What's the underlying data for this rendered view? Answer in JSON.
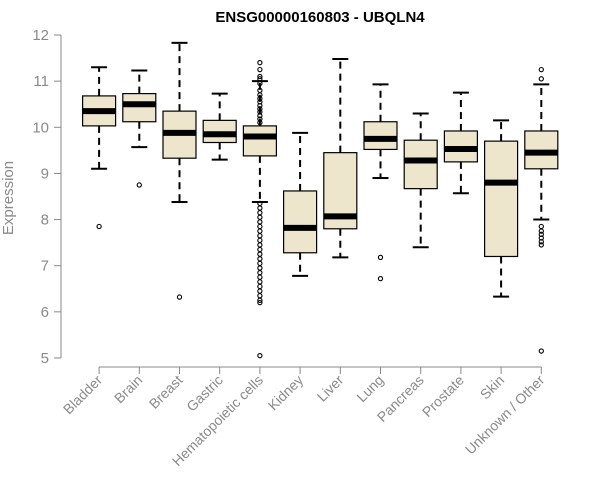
{
  "chart_data": {
    "type": "boxplot",
    "title": "ENSG00000160803 - UBQLN4",
    "xlabel": "",
    "ylabel": "Expression",
    "ylim": [
      5,
      12
    ],
    "yticks": [
      5,
      6,
      7,
      8,
      9,
      10,
      11,
      12
    ],
    "grid": false,
    "box_fill": "#ede6cc",
    "categories": [
      "Bladder",
      "Brain",
      "Breast",
      "Gastric",
      "Hematopoietic cells",
      "Kidney",
      "Liver",
      "Lung",
      "Pancreas",
      "Prostate",
      "Skin",
      "Unknown / Other"
    ],
    "boxes": [
      {
        "name": "Bladder",
        "whisker_low": 9.1,
        "q1": 10.03,
        "median": 10.35,
        "q3": 10.68,
        "whisker_high": 11.3,
        "outliers": [
          7.85
        ]
      },
      {
        "name": "Brain",
        "whisker_low": 9.57,
        "q1": 10.12,
        "median": 10.5,
        "q3": 10.73,
        "whisker_high": 11.23,
        "outliers": [
          8.75
        ]
      },
      {
        "name": "Breast",
        "whisker_low": 8.38,
        "q1": 9.33,
        "median": 9.88,
        "q3": 10.35,
        "whisker_high": 11.83,
        "outliers": [
          6.32
        ]
      },
      {
        "name": "Gastric",
        "whisker_low": 9.3,
        "q1": 9.67,
        "median": 9.85,
        "q3": 10.15,
        "whisker_high": 10.73,
        "outliers": []
      },
      {
        "name": "Hematopoietic cells",
        "whisker_low": 8.38,
        "q1": 9.38,
        "median": 9.8,
        "q3": 10.03,
        "whisker_high": 11.0,
        "outliers": [
          11.4,
          11.25,
          11.1,
          11.05,
          10.95,
          10.8,
          10.7,
          10.62,
          10.55,
          10.47,
          10.4,
          10.33,
          10.25,
          10.18,
          10.1,
          8.35,
          8.25,
          8.15,
          8.05,
          7.95,
          7.85,
          7.75,
          7.65,
          7.55,
          7.45,
          7.35,
          7.25,
          7.15,
          7.05,
          6.95,
          6.85,
          6.75,
          6.65,
          6.55,
          6.45,
          6.35,
          6.25,
          6.2,
          5.05
        ]
      },
      {
        "name": "Kidney",
        "whisker_low": 6.78,
        "q1": 7.28,
        "median": 7.82,
        "q3": 8.62,
        "whisker_high": 9.88,
        "outliers": []
      },
      {
        "name": "Liver",
        "whisker_low": 7.18,
        "q1": 7.8,
        "median": 8.07,
        "q3": 9.45,
        "whisker_high": 11.48,
        "outliers": []
      },
      {
        "name": "Lung",
        "whisker_low": 8.9,
        "q1": 9.52,
        "median": 9.75,
        "q3": 10.12,
        "whisker_high": 10.93,
        "outliers": [
          7.18,
          6.72
        ]
      },
      {
        "name": "Pancreas",
        "whisker_low": 7.4,
        "q1": 8.67,
        "median": 9.28,
        "q3": 9.72,
        "whisker_high": 10.3,
        "outliers": []
      },
      {
        "name": "Prostate",
        "whisker_low": 8.57,
        "q1": 9.25,
        "median": 9.53,
        "q3": 9.92,
        "whisker_high": 10.75,
        "outliers": []
      },
      {
        "name": "Skin",
        "whisker_low": 6.33,
        "q1": 7.2,
        "median": 8.8,
        "q3": 9.7,
        "whisker_high": 10.15,
        "outliers": []
      },
      {
        "name": "Unknown / Other",
        "whisker_low": 8.0,
        "q1": 9.1,
        "median": 9.45,
        "q3": 9.92,
        "whisker_high": 10.93,
        "outliers": [
          11.25,
          11.05,
          7.85,
          7.75,
          7.68,
          7.6,
          7.52,
          7.45,
          5.15
        ]
      }
    ]
  }
}
